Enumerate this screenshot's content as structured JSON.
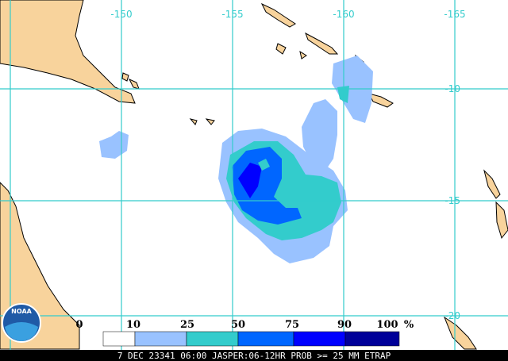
{
  "map": {
    "longitude_labels": [
      -150,
      -155,
      -160,
      -165
    ],
    "latitude_labels": [
      -10,
      -15,
      -20
    ],
    "logo": "NOAA",
    "legend": {
      "labels": [
        0,
        10,
        25,
        50,
        75,
        90,
        100
      ],
      "unit": "%",
      "colors": [
        "#ffffff",
        "#99c2ff",
        "#33cccc",
        "#0066ff",
        "#0000ff",
        "#000099"
      ]
    },
    "caption": "7 DEC 23341 06:00 JASPER:06-12HR PROB >= 25 MM ETRAP"
  }
}
